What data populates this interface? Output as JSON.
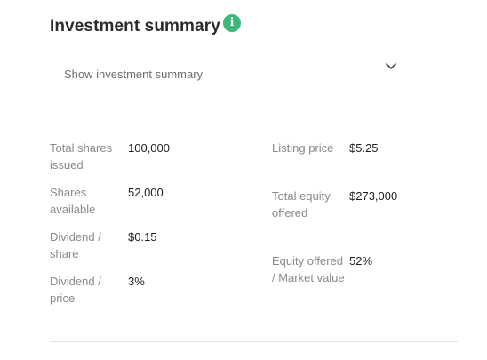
{
  "section": {
    "title": "Investment summary",
    "info_icon_glyph": "i",
    "info_icon_color": "#3cb878",
    "toggle_label": "Show investment summary",
    "toggle_icon": "chevron-down-icon"
  },
  "left_stats": [
    {
      "label": "Total shares issued",
      "value": "100,000"
    },
    {
      "label": "Shares available",
      "value": "52,000"
    },
    {
      "label": "Dividend / share",
      "value": "$0.15"
    },
    {
      "label": "Dividend / price",
      "value": "3%"
    }
  ],
  "right_stats": [
    {
      "label": "Listing price",
      "value": "$5.25"
    },
    {
      "label": "Total equity offered",
      "value": "$273,000"
    },
    {
      "label": "Equity offered / Market value",
      "value": "52%"
    }
  ]
}
